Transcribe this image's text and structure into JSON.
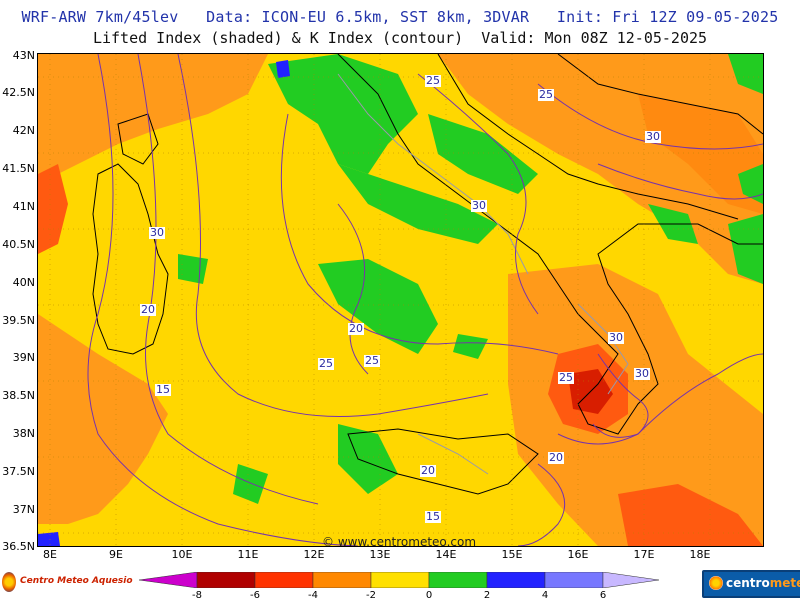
{
  "header": {
    "line1": "WRF-ARW 7km/45lev   Data: ICON-EU 6.5km, SST 8km, 3DVAR   Init: Fri 12Z 09-05-2025",
    "line2": "Lifted Index (shaded) & K Index (contour)  Valid: Mon 08Z 12-05-2025"
  },
  "axes": {
    "lat_labels": [
      "43N",
      "42.5N",
      "42N",
      "41.5N",
      "41N",
      "40.5N",
      "40N",
      "39.5N",
      "39N",
      "38.5N",
      "38N",
      "37.5N",
      "37N",
      "36.5N"
    ],
    "lon_labels": [
      "8E",
      "9E",
      "10E",
      "11E",
      "12E",
      "13E",
      "14E",
      "15E",
      "16E",
      "17E",
      "18E"
    ]
  },
  "contour_labels": [
    "25",
    "25",
    "30",
    "30",
    "30",
    "20",
    "20",
    "25",
    "25",
    "15",
    "30",
    "30",
    "25",
    "20",
    "20",
    "15"
  ],
  "watermark": "© www.centrometeo.com",
  "logos": {
    "left": "Centro Meteo Aquesio",
    "right_part1": "centro",
    "right_part2": "meteo"
  },
  "legend": {
    "ticks": [
      "-8",
      "-6",
      "-4",
      "-2",
      "0",
      "2",
      "4",
      "6"
    ],
    "colors": [
      "#cc00cc",
      "#b00000",
      "#ff3300",
      "#ff8800",
      "#ffe000",
      "#22cc22",
      "#2222ff",
      "#7777ff",
      "#c8b8ff"
    ]
  }
}
